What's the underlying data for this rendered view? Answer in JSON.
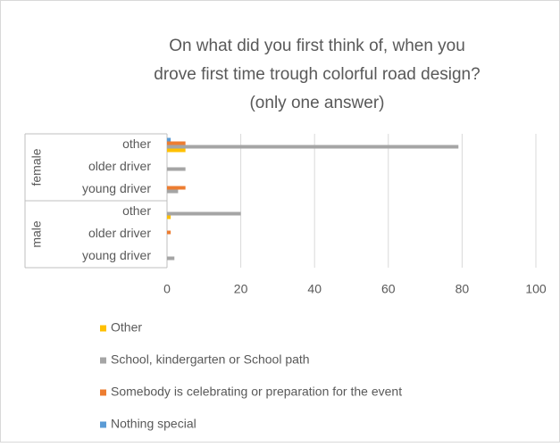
{
  "chart_data": {
    "type": "bar",
    "orientation": "horizontal",
    "title": [
      "On what did you first think of, when you",
      "drove first time trough colorful road design?",
      "(only one answer)"
    ],
    "groups": [
      {
        "name": "female",
        "categories": [
          "other",
          "older driver",
          "young driver"
        ]
      },
      {
        "name": "male",
        "categories": [
          "other",
          "older driver",
          "young driver"
        ]
      }
    ],
    "series": [
      {
        "name": "Other",
        "color": "#ffc000",
        "values": [
          5,
          0,
          0,
          1,
          0,
          0
        ]
      },
      {
        "name": "School, kindergarten or School path",
        "color": "#a5a5a5",
        "values": [
          79,
          5,
          3,
          20,
          0,
          2
        ]
      },
      {
        "name": "Somebody is celebrating or preparation for the event",
        "color": "#ed7d31",
        "values": [
          5,
          0,
          5,
          0,
          1,
          0
        ]
      },
      {
        "name": "Nothing special",
        "color": "#5b9bd5",
        "values": [
          1,
          0,
          0,
          0,
          0,
          0
        ]
      }
    ],
    "xlim": [
      0,
      100
    ],
    "xticks": [
      0,
      20,
      40,
      60,
      80,
      100
    ],
    "grid": true
  }
}
